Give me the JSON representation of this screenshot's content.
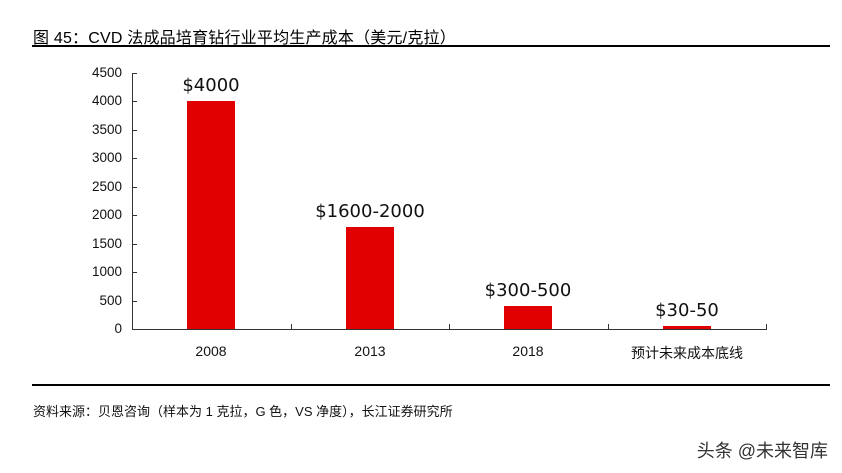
{
  "figure": {
    "title": "图 45：CVD 法成品培育钻行业平均生产成本（美元/克拉）",
    "source": "资料来源：贝恩咨询（样本为 1 克拉，G 色，VS 净度），长江证券研究所",
    "watermark": "头条 @未来智库"
  },
  "colors": {
    "bar": "#e00000",
    "axis": "#333333",
    "rule": "#000000"
  },
  "chart_data": {
    "type": "bar",
    "title": "CVD 法成品培育钻行业平均生产成本（美元/克拉）",
    "xlabel": "",
    "ylabel": "美元/克拉",
    "categories": [
      "2008",
      "2013",
      "2018",
      "预计未来成本底线"
    ],
    "values": [
      4000,
      1800,
      400,
      50
    ],
    "data_labels": [
      "$4000",
      "$1600-2000",
      "$300-500",
      "$30-50"
    ],
    "ylim": [
      0,
      4500
    ],
    "yticks": [
      0,
      500,
      1000,
      1500,
      2000,
      2500,
      3000,
      3500,
      4000,
      4500
    ],
    "grid": false,
    "legend": null
  }
}
